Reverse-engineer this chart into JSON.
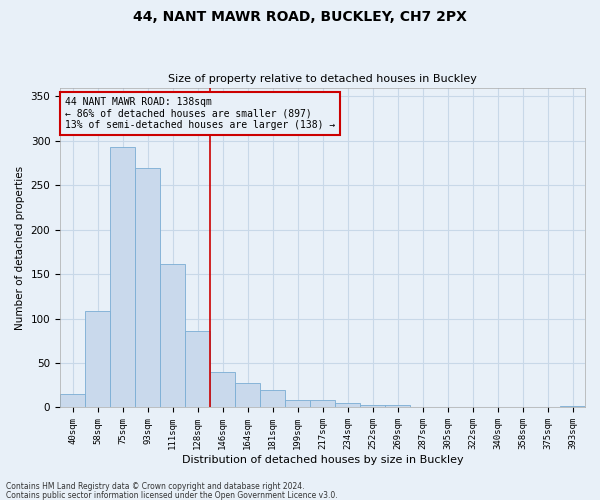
{
  "title1": "44, NANT MAWR ROAD, BUCKLEY, CH7 2PX",
  "title2": "Size of property relative to detached houses in Buckley",
  "xlabel": "Distribution of detached houses by size in Buckley",
  "ylabel": "Number of detached properties",
  "categories": [
    "40sqm",
    "58sqm",
    "75sqm",
    "93sqm",
    "111sqm",
    "128sqm",
    "146sqm",
    "164sqm",
    "181sqm",
    "199sqm",
    "217sqm",
    "234sqm",
    "252sqm",
    "269sqm",
    "287sqm",
    "305sqm",
    "322sqm",
    "340sqm",
    "358sqm",
    "375sqm",
    "393sqm"
  ],
  "values": [
    15,
    108,
    293,
    270,
    162,
    86,
    40,
    27,
    20,
    8,
    8,
    5,
    3,
    3,
    0,
    0,
    0,
    0,
    0,
    0,
    2
  ],
  "bar_color": "#c9d9ec",
  "bar_edge_color": "#7aadd4",
  "grid_color": "#c8d8e8",
  "background_color": "#e8f0f8",
  "vline_x": 5.5,
  "vline_color": "#cc0000",
  "annotation_text": "44 NANT MAWR ROAD: 138sqm\n← 86% of detached houses are smaller (897)\n13% of semi-detached houses are larger (138) →",
  "annotation_box_edge": "#cc0000",
  "footer1": "Contains HM Land Registry data © Crown copyright and database right 2024.",
  "footer2": "Contains public sector information licensed under the Open Government Licence v3.0.",
  "ylim": [
    0,
    360
  ],
  "yticks": [
    0,
    50,
    100,
    150,
    200,
    250,
    300,
    350
  ]
}
